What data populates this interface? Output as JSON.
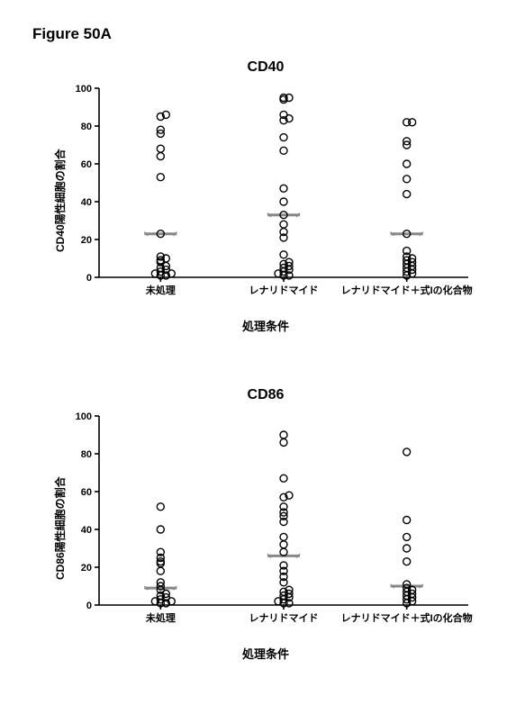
{
  "figure_label": "Figure 50A",
  "charts": [
    {
      "key": "cd40",
      "title": "CD40",
      "ylabel": "CD40陽性細胞の割合",
      "xlabel": "処理条件",
      "ylim": [
        0,
        100
      ],
      "ytick_step": 20,
      "categories": [
        "未処理",
        "レナリドマイド",
        "レナリドマイド＋式Iの化合物"
      ],
      "means": [
        23,
        33,
        23
      ],
      "marker_stroke": "#000000",
      "marker_fill": "none",
      "marker_r": 4,
      "marker_sw": 1.4,
      "mean_color": "#888888",
      "mean_width": 18,
      "axis_color": "#000000",
      "axis_sw": 1.6,
      "title_fontsize": 16,
      "tick_fontsize": 11,
      "catlabel_fontsize": 11,
      "background": "#ffffff",
      "series": [
        {
          "x": 0,
          "values": [
            1,
            1,
            2,
            2,
            3,
            4,
            5,
            6,
            8,
            9,
            10,
            11,
            23,
            53,
            64,
            68,
            76,
            78,
            85,
            86
          ]
        },
        {
          "x": 1,
          "values": [
            1,
            1,
            2,
            3,
            4,
            5,
            6,
            7,
            8,
            12,
            21,
            24,
            28,
            33,
            40,
            47,
            67,
            74,
            83,
            84,
            86,
            94,
            95,
            95
          ]
        },
        {
          "x": 2,
          "values": [
            1,
            2,
            3,
            4,
            5,
            6,
            7,
            8,
            9,
            10,
            11,
            14,
            23,
            44,
            52,
            60,
            70,
            72,
            82,
            82
          ]
        }
      ]
    },
    {
      "key": "cd86",
      "title": "CD86",
      "ylabel": "CD86陽性細胞の割合",
      "xlabel": "処理条件",
      "ylim": [
        0,
        100
      ],
      "ytick_step": 20,
      "categories": [
        "未処理",
        "レナリドマイド",
        "レナリドマイド＋式Iの化合物"
      ],
      "means": [
        9,
        26,
        10
      ],
      "marker_stroke": "#000000",
      "marker_fill": "none",
      "marker_r": 4,
      "marker_sw": 1.4,
      "mean_color": "#888888",
      "mean_width": 18,
      "axis_color": "#000000",
      "axis_sw": 1.6,
      "title_fontsize": 16,
      "tick_fontsize": 11,
      "catlabel_fontsize": 11,
      "background": "#ffffff",
      "series": [
        {
          "x": 0,
          "values": [
            1,
            1,
            2,
            2,
            3,
            4,
            5,
            6,
            8,
            10,
            12,
            18,
            22,
            23,
            25,
            28,
            40,
            52
          ]
        },
        {
          "x": 1,
          "values": [
            1,
            1,
            2,
            3,
            4,
            5,
            6,
            7,
            8,
            12,
            15,
            18,
            21,
            28,
            32,
            36,
            44,
            47,
            49,
            52,
            57,
            58,
            67,
            86,
            90
          ]
        },
        {
          "x": 2,
          "values": [
            1,
            2,
            3,
            4,
            5,
            6,
            7,
            8,
            9,
            11,
            23,
            30,
            36,
            45,
            81
          ]
        }
      ]
    }
  ]
}
